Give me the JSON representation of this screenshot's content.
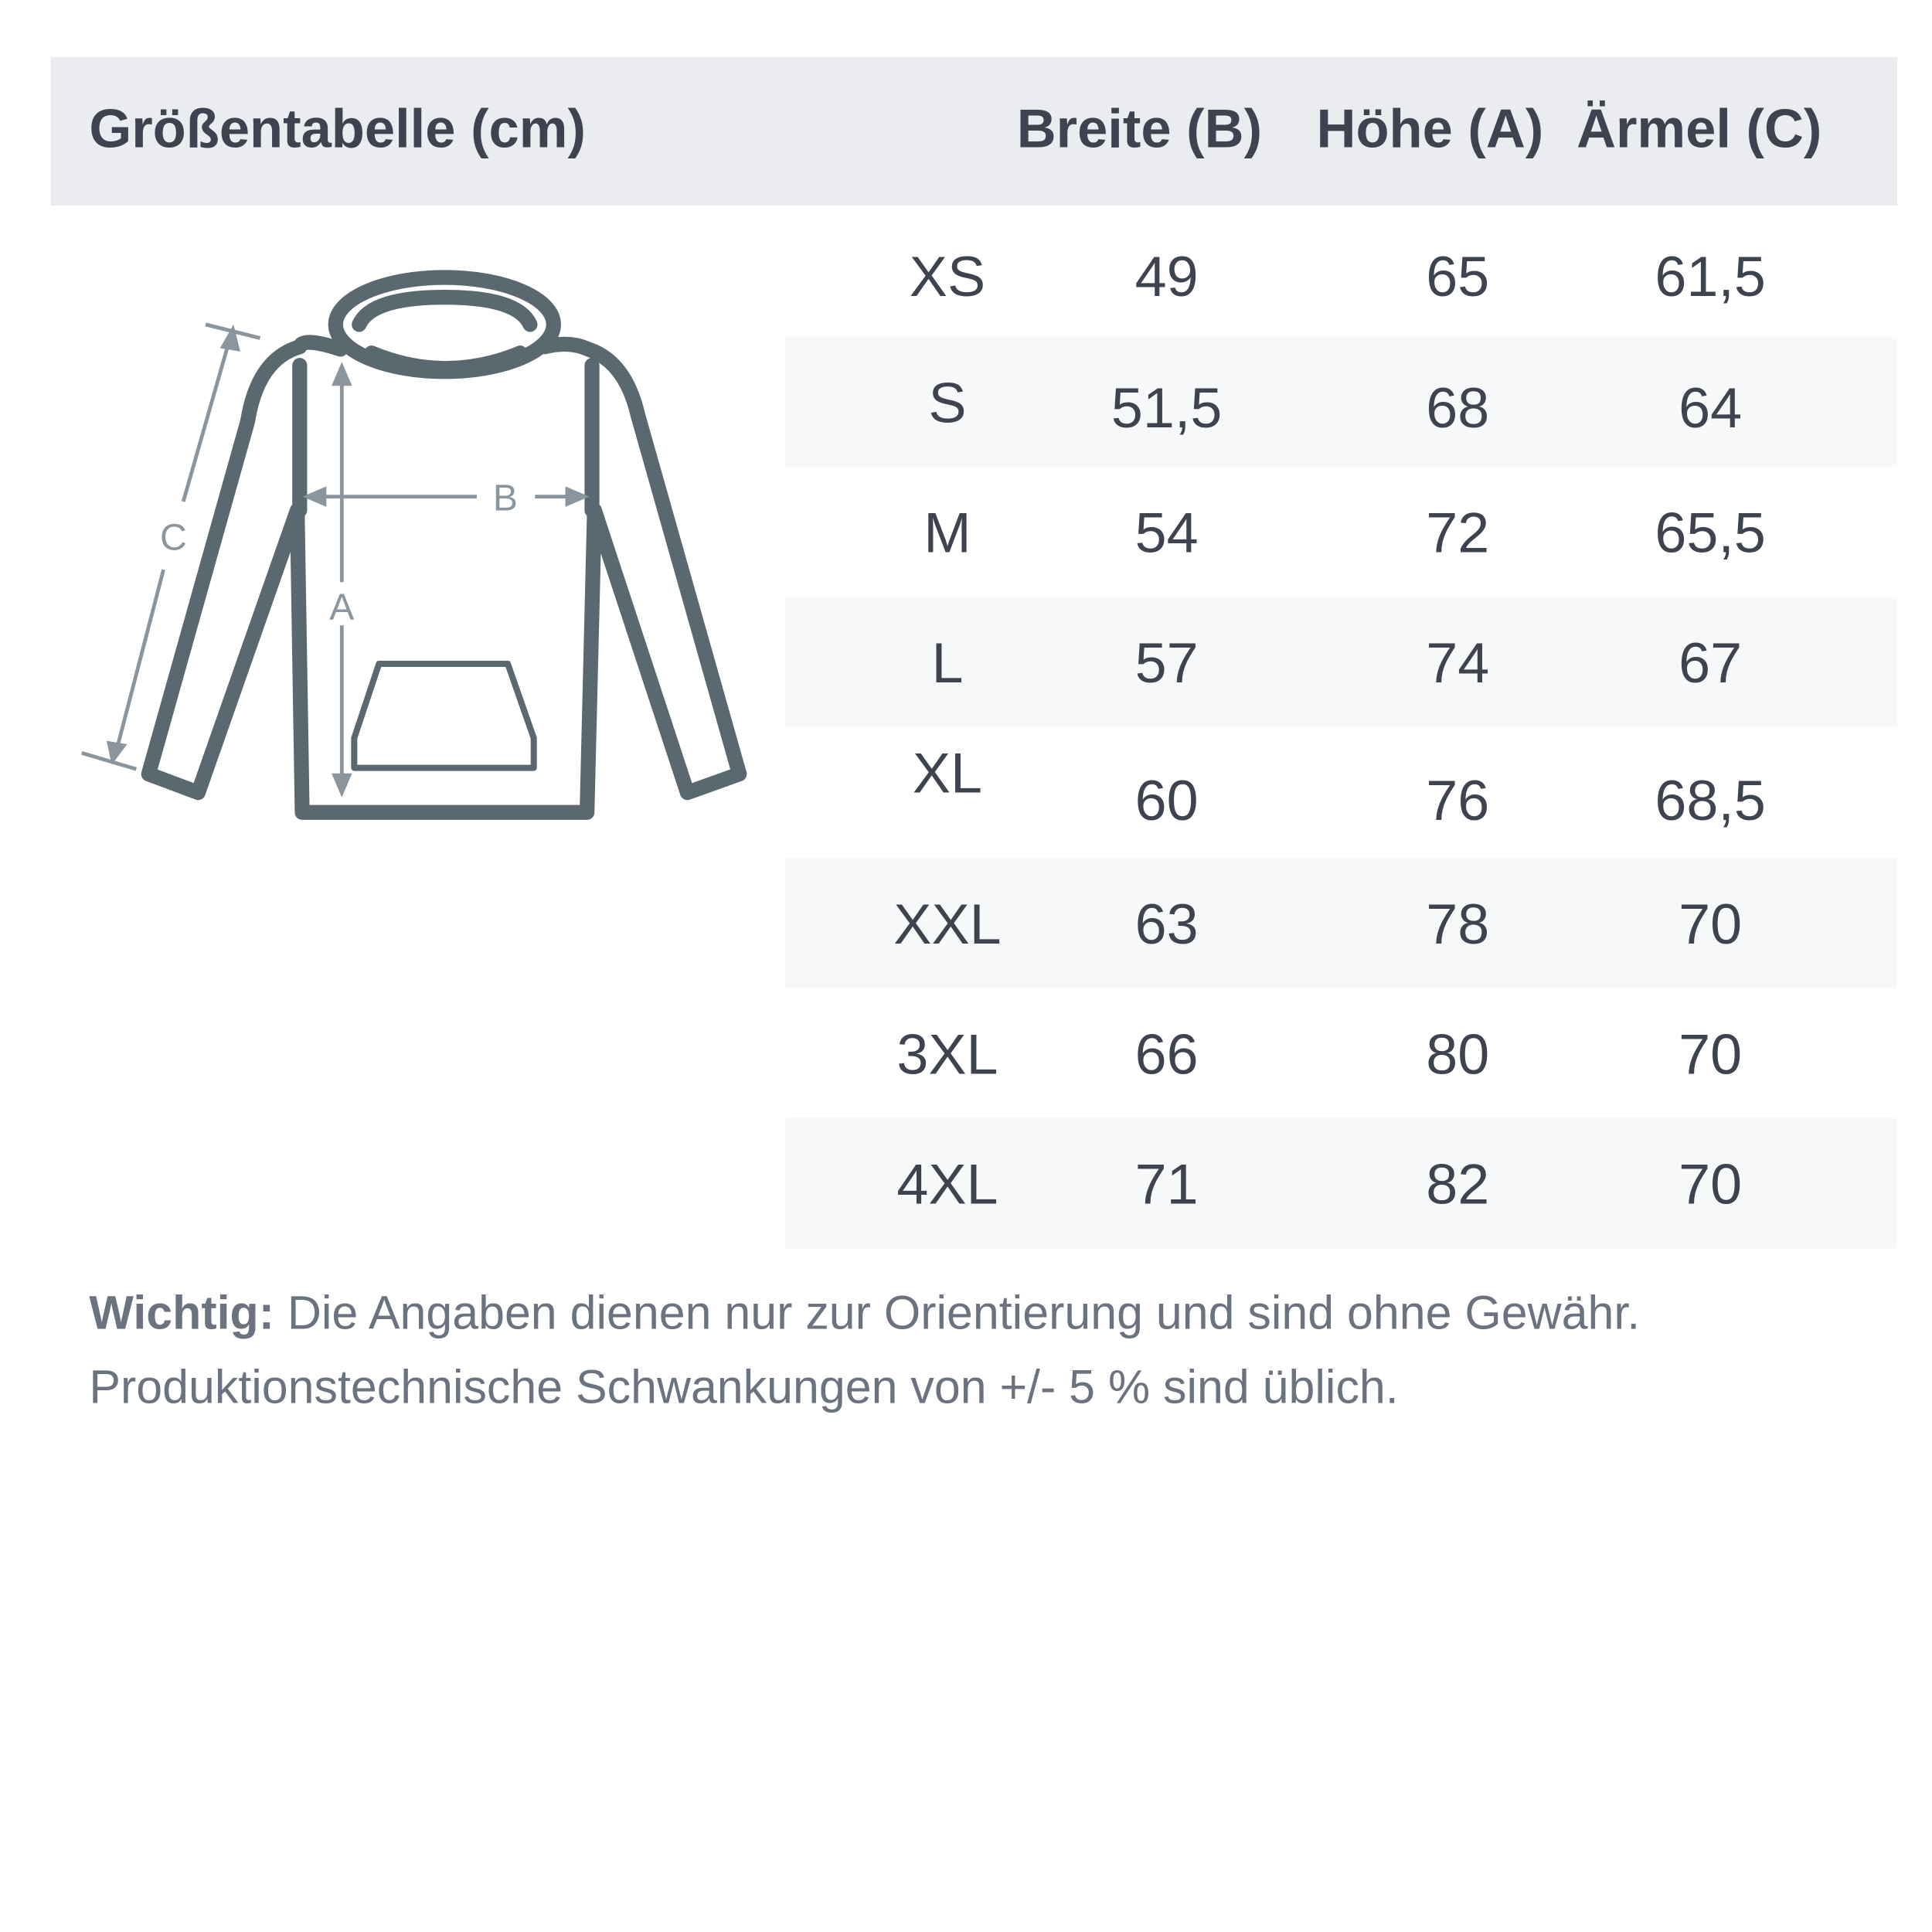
{
  "header": {
    "title": "Größentabelle (cm)",
    "columns": [
      "Breite (B)",
      "Höhe (A)",
      "Ärmel (C)"
    ]
  },
  "diagram": {
    "labels": {
      "width": "B",
      "height": "A",
      "sleeve": "C"
    }
  },
  "table": {
    "rows": [
      {
        "size": "XS",
        "breite": "49",
        "hoehe": "65",
        "aermel": "61,5"
      },
      {
        "size": "S",
        "breite": "51,5",
        "hoehe": "68",
        "aermel": "64"
      },
      {
        "size": "M",
        "breite": "54",
        "hoehe": "72",
        "aermel": "65,5"
      },
      {
        "size": "L",
        "breite": "57",
        "hoehe": "74",
        "aermel": "67"
      },
      {
        "size": "XL",
        "breite": "60",
        "hoehe": "76",
        "aermel": "68,5"
      },
      {
        "size": "XXL",
        "breite": "63",
        "hoehe": "78",
        "aermel": "70"
      },
      {
        "size": "3XL",
        "breite": "66",
        "hoehe": "80",
        "aermel": "70"
      },
      {
        "size": "4XL",
        "breite": "71",
        "hoehe": "82",
        "aermel": "70"
      }
    ]
  },
  "note": {
    "label": "Wichtig:",
    "line1": " Die Angaben dienen nur zur Orientierung und sind ohne Gewähr.",
    "line2": "Produktionstechnische Schwankungen von +/- 5 % sind üblich."
  },
  "colors": {
    "text": "#3d4450",
    "header_bg": "#ebecef",
    "stripe": "#f7f8fa",
    "outline": "#5a6870",
    "measure": "#8a959e"
  }
}
